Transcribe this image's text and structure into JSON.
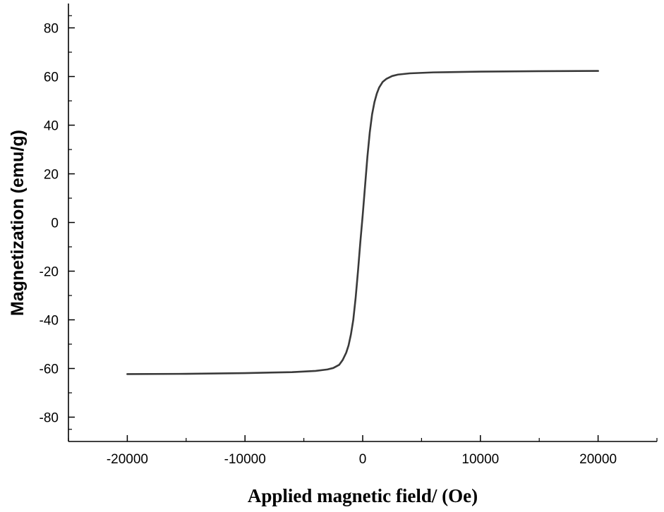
{
  "chart_data": {
    "type": "line",
    "title": "",
    "xlabel": "Applied magnetic field/ (Oe)",
    "ylabel": "Magnetization (emu/g)",
    "xlim": [
      -25000,
      25000
    ],
    "ylim": [
      -90,
      90
    ],
    "x_ticks": [
      -20000,
      -10000,
      0,
      10000,
      20000
    ],
    "x_tick_labels": [
      "-20000",
      "-10000",
      "0",
      "10000",
      "20000"
    ],
    "y_ticks": [
      -80,
      -60,
      -40,
      -20,
      0,
      20,
      40,
      60,
      80
    ],
    "y_tick_labels": [
      "-80",
      "-60",
      "-40",
      "-20",
      "0",
      "20",
      "40",
      "60",
      "80"
    ],
    "grid": false,
    "series": [
      {
        "color": "#3a3a3a",
        "x": [
          -20000,
          -15000,
          -10000,
          -6000,
          -4000,
          -3000,
          -2500,
          -2000,
          -1700,
          -1400,
          -1200,
          -1000,
          -800,
          -600,
          -400,
          -200,
          0,
          200,
          400,
          600,
          800,
          1000,
          1200,
          1400,
          1700,
          2000,
          2500,
          3000,
          4000,
          6000,
          10000,
          15000,
          20000
        ],
        "y": [
          -62.3,
          -62.2,
          -61.9,
          -61.5,
          -61.0,
          -60.4,
          -59.8,
          -58.5,
          -56.5,
          -53.5,
          -50.5,
          -46.0,
          -40.0,
          -31.0,
          -20.0,
          -8.0,
          3.0,
          15.0,
          27.0,
          37.0,
          44.5,
          49.5,
          53.0,
          55.5,
          57.8,
          59.0,
          60.2,
          60.8,
          61.3,
          61.7,
          62.0,
          62.2,
          62.3
        ]
      }
    ]
  }
}
